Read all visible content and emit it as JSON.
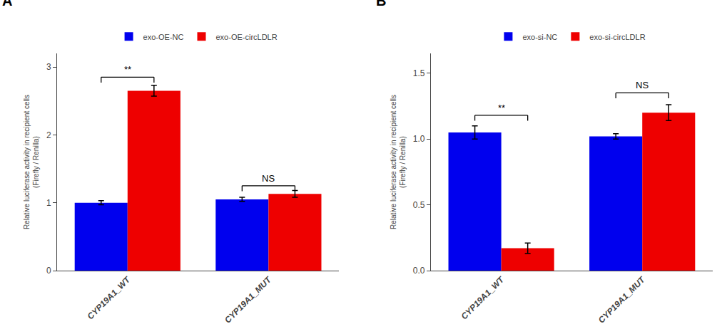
{
  "chart_data": [
    {
      "type": "bar",
      "title": "A",
      "categories": [
        "CYP19A1_WT",
        "CYP19A1_MUT"
      ],
      "series": [
        {
          "name": "exo-OE-NC",
          "color": "#0000EE",
          "values": [
            1.0,
            1.05
          ],
          "errors": [
            0.03,
            0.03
          ]
        },
        {
          "name": "exo-OE-circLDLR",
          "color": "#EE0000",
          "values": [
            2.65,
            1.13
          ],
          "errors": [
            0.08,
            0.05
          ]
        }
      ],
      "ylabel": "Relative luciferase activity in recipient cells\n(Firefly / Renilla)",
      "ylim": [
        0,
        3.2
      ],
      "yticks": [
        0,
        1,
        2,
        3
      ],
      "annotations": [
        {
          "text": "**",
          "x": "CYP19A1_WT",
          "y": 2.85
        },
        {
          "text": "NS",
          "x": "CYP19A1_MUT",
          "y": 1.25
        }
      ],
      "grid": false
    },
    {
      "type": "bar",
      "title": "B",
      "categories": [
        "CYP19A1_WT",
        "CYP19A1_MUT"
      ],
      "series": [
        {
          "name": "exo-si-NC",
          "color": "#0000EE",
          "values": [
            1.05,
            1.02
          ],
          "errors": [
            0.05,
            0.02
          ]
        },
        {
          "name": "exo-si-circLDLR",
          "color": "#EE0000",
          "values": [
            0.17,
            1.2
          ],
          "errors": [
            0.04,
            0.06
          ]
        }
      ],
      "ylabel": "Relative luciferase activity in recipient cells\n(Firefly / Renilla)",
      "ylim": [
        0,
        1.65
      ],
      "yticks": [
        {
          "value": 0,
          "label": "0.0"
        },
        0.5,
        {
          "value": 1,
          "label": "1.0"
        },
        1.5
      ],
      "annotations": [
        {
          "text": "**",
          "x": "CYP19A1_WT",
          "y": 1.18
        },
        {
          "text": "NS",
          "x": "CYP19A1_MUT",
          "y": 1.35
        }
      ],
      "grid": false
    }
  ]
}
